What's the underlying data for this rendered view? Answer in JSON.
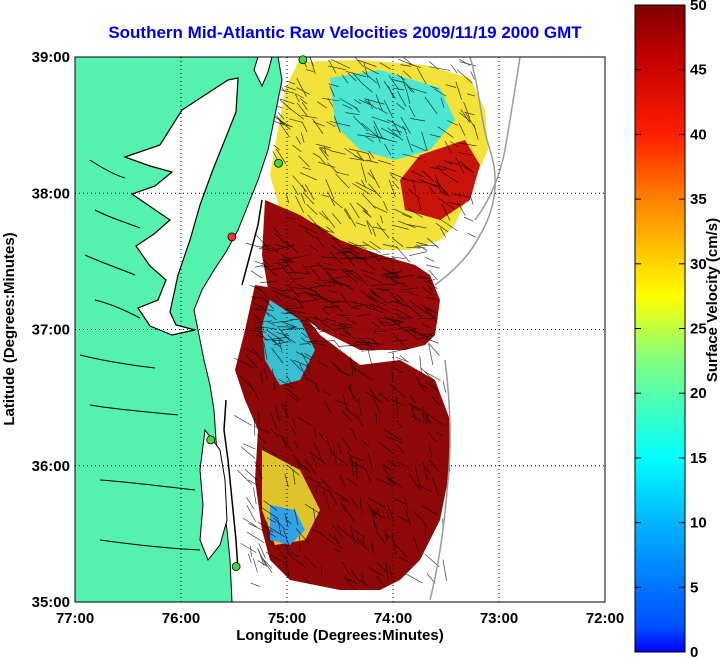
{
  "title": "Southern Mid-Atlantic Raw Velocities 2009/11/19 2000 GMT",
  "colors": {
    "land": "#55f2ae",
    "coast": "#000000",
    "title": "#0000e6",
    "station": "#3ddc3d",
    "station_red": "#ff3030"
  },
  "map": {
    "xlabel": "Longitude (Degrees:Minutes)",
    "ylabel": "Latitude (Degrees:Minutes)",
    "lon_range": [
      -77,
      -72
    ],
    "lat_range": [
      35,
      39
    ],
    "x_ticks": [
      {
        "value": -77,
        "label": "77:00"
      },
      {
        "value": -76,
        "label": "76:00"
      },
      {
        "value": -75,
        "label": "75:00"
      },
      {
        "value": -74,
        "label": "74:00"
      },
      {
        "value": -73,
        "label": "73:00"
      },
      {
        "value": -72,
        "label": "72:00"
      }
    ],
    "y_ticks": [
      {
        "value": 35,
        "label": "35:00"
      },
      {
        "value": 36,
        "label": "36:00"
      },
      {
        "value": 37,
        "label": "37:00"
      },
      {
        "value": 38,
        "label": "38:00"
      },
      {
        "value": 39,
        "label": "39:00"
      }
    ],
    "grid": "dotted"
  },
  "colorbar": {
    "label": "Surface Velocity (cm/s)",
    "min": 0,
    "max": 50,
    "ticks": [
      {
        "value": 0,
        "label": "0"
      },
      {
        "value": 5,
        "label": "5"
      },
      {
        "value": 10,
        "label": "10"
      },
      {
        "value": 15,
        "label": "15"
      },
      {
        "value": 20,
        "label": "20"
      },
      {
        "value": 25,
        "label": "25"
      },
      {
        "value": 30,
        "label": "30"
      },
      {
        "value": 35,
        "label": "35"
      },
      {
        "value": 40,
        "label": "40"
      },
      {
        "value": 45,
        "label": "45"
      },
      {
        "value": 50,
        "label": "50"
      }
    ],
    "colormap": "jet"
  },
  "stations": [
    {
      "lon": -74.85,
      "lat": 38.98,
      "color": "station"
    },
    {
      "lon": -75.08,
      "lat": 38.22,
      "color": "station"
    },
    {
      "lon": -75.52,
      "lat": 37.68,
      "color": "station_red"
    },
    {
      "lon": -75.72,
      "lat": 36.19,
      "color": "station"
    },
    {
      "lon": -75.48,
      "lat": 35.26,
      "color": "station"
    }
  ]
}
